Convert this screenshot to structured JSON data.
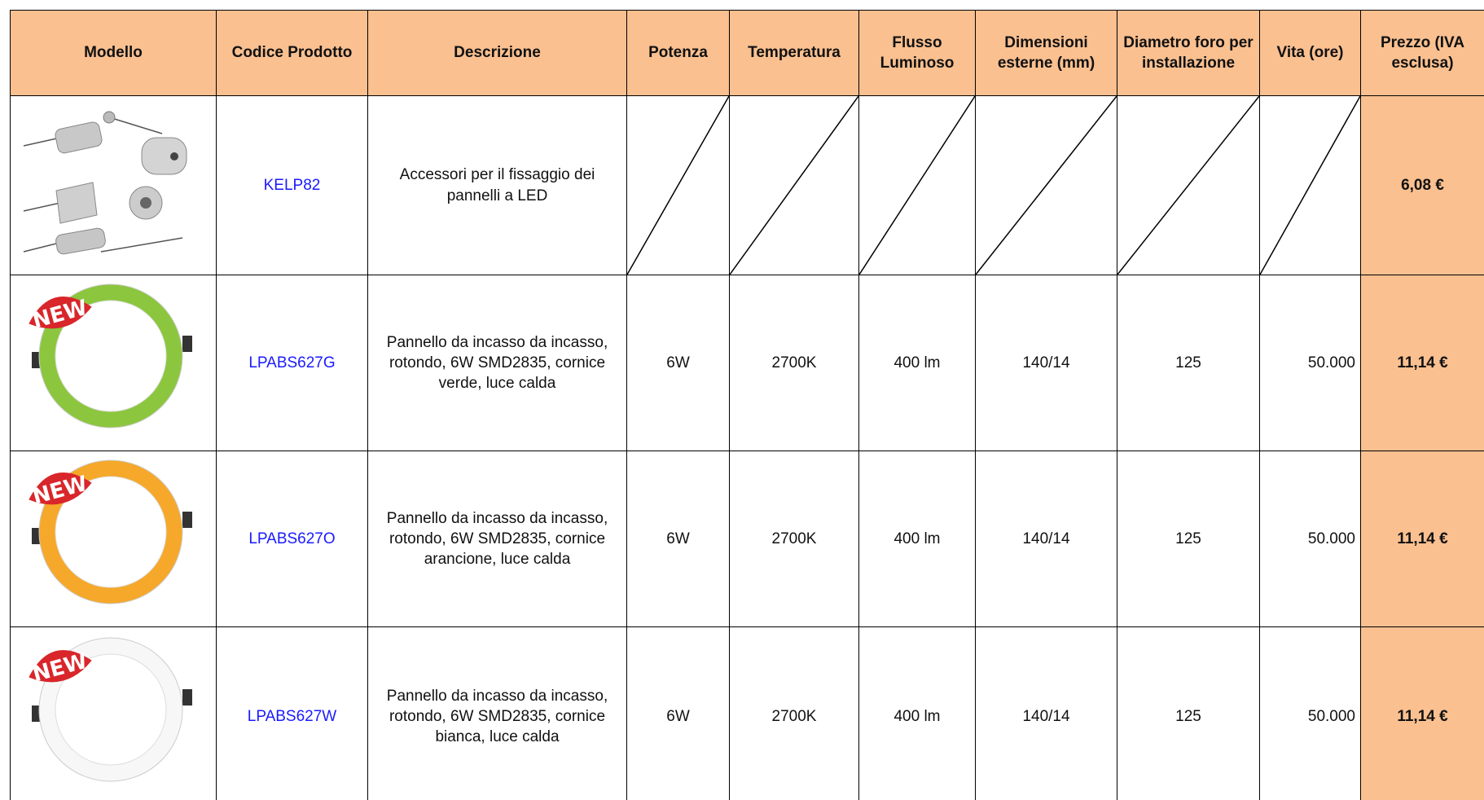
{
  "header": {
    "columns": [
      "Modello",
      "Codice Prodotto",
      "Descrizione",
      "Potenza",
      "Temperatura",
      "Flusso Luminoso",
      "Dimensioni esterne (mm)",
      "Diametro foro per installazione",
      "Vita (ore)",
      "Prezzo (IVA esclusa)"
    ]
  },
  "table": {
    "rows": [
      {
        "code": "KELP82",
        "description": "Accessori per il fissaggio dei pannelli a LED",
        "price": "6,08 €"
      },
      {
        "code": "LPABS627G",
        "description": "Pannello da incasso da incasso, rotondo, 6W SMD2835, cornice verde, luce calda",
        "power": "6W",
        "temperature": "2700K",
        "flux": "400 lm",
        "dimensions": "140/14",
        "hole": "125",
        "life": "50.000",
        "price": "11,14 €"
      },
      {
        "code": "LPABS627O",
        "description": "Pannello da incasso da incasso, rotondo, 6W SMD2835, cornice arancione, luce calda",
        "power": "6W",
        "temperature": "2700K",
        "flux": "400 lm",
        "dimensions": "140/14",
        "hole": "125",
        "life": "50.000",
        "price": "11,14 €"
      },
      {
        "code": "LPABS627W",
        "description": "Pannello da incasso da incasso, rotondo, 6W SMD2835, cornice bianca, luce calda",
        "power": "6W",
        "temperature": "2700K",
        "flux": "400 lm",
        "dimensions": "140/14",
        "hole": "125",
        "life": "50.000",
        "price": "11,14 €"
      }
    ]
  }
}
